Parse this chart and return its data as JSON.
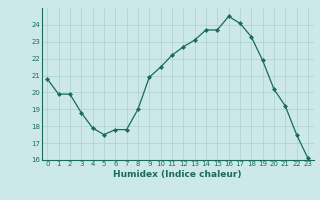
{
  "x": [
    0,
    1,
    2,
    3,
    4,
    5,
    6,
    7,
    8,
    9,
    10,
    11,
    12,
    13,
    14,
    15,
    16,
    17,
    18,
    19,
    20,
    21,
    22,
    23
  ],
  "y": [
    20.8,
    19.9,
    19.9,
    18.8,
    17.9,
    17.5,
    17.8,
    17.8,
    19.0,
    20.9,
    21.5,
    22.2,
    22.7,
    23.1,
    23.7,
    23.7,
    24.5,
    24.1,
    23.3,
    21.9,
    20.2,
    19.2,
    17.5,
    16.1
  ],
  "xlabel": "Humidex (Indice chaleur)",
  "ylim": [
    16,
    25
  ],
  "xlim": [
    -0.5,
    23.5
  ],
  "yticks": [
    16,
    17,
    18,
    19,
    20,
    21,
    22,
    23,
    24
  ],
  "xticks": [
    0,
    1,
    2,
    3,
    4,
    5,
    6,
    7,
    8,
    9,
    10,
    11,
    12,
    13,
    14,
    15,
    16,
    17,
    18,
    19,
    20,
    21,
    22,
    23
  ],
  "line_color": "#1a6b5a",
  "marker_color": "#1a6b5a",
  "bg_color": "#cce8e8",
  "grid_color": "#aad0d0",
  "tick_color": "#1a6b5a",
  "tick_fontsize": 5.0,
  "xlabel_fontsize": 6.5
}
